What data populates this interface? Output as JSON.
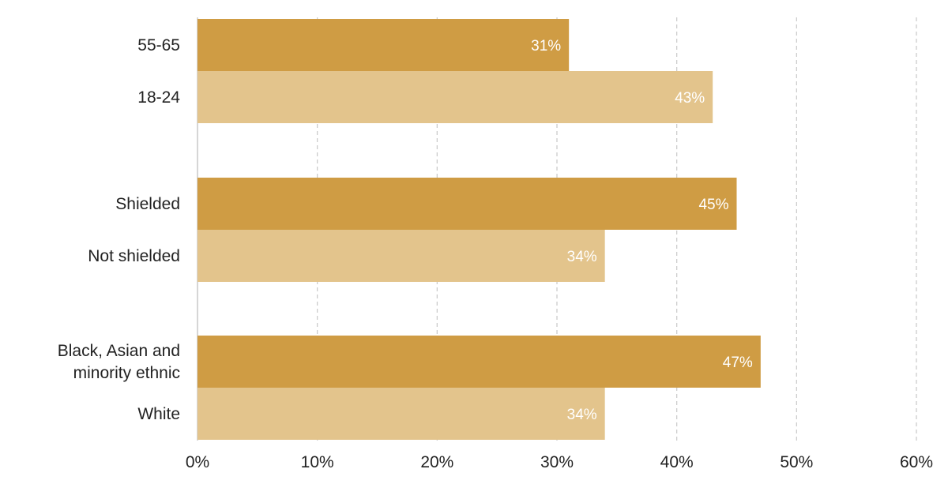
{
  "chart_data": {
    "type": "bar",
    "orientation": "horizontal",
    "categories": [
      "55-65",
      "18-24",
      "Shielded",
      "Not shielded",
      "Black, Asian and minority ethnic",
      "White"
    ],
    "category_lines": [
      [
        "55-65"
      ],
      [
        "18-24"
      ],
      [
        "Shielded"
      ],
      [
        "Not shielded"
      ],
      [
        "Black, Asian and",
        "minority ethnic"
      ],
      [
        "White"
      ]
    ],
    "groups": [
      {
        "categories": [
          "55-65",
          "18-24"
        ]
      },
      {
        "categories": [
          "Shielded",
          "Not shielded"
        ]
      },
      {
        "categories": [
          "Black, Asian and minority ethnic",
          "White"
        ]
      }
    ],
    "values": [
      31,
      43,
      45,
      34,
      47,
      34
    ],
    "data_labels": [
      "31%",
      "43%",
      "45%",
      "34%",
      "47%",
      "34%"
    ],
    "colors": [
      "#cf9c44",
      "#e3c48c",
      "#cf9c44",
      "#e3c48c",
      "#cf9c44",
      "#e3c48c"
    ],
    "xlim": [
      0,
      60
    ],
    "xticks": [
      0,
      10,
      20,
      30,
      40,
      50,
      60
    ],
    "xtick_labels": [
      "0%",
      "10%",
      "20%",
      "30%",
      "40%",
      "50%",
      "60%"
    ],
    "grid": true,
    "legend": "none",
    "title": "",
    "xlabel": "",
    "ylabel": ""
  }
}
